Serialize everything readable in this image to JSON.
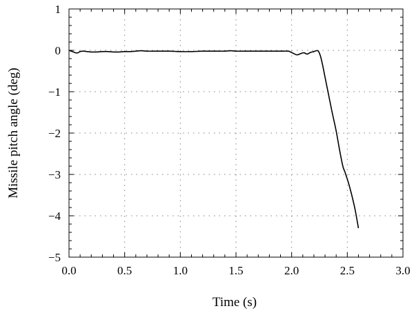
{
  "chart_data": {
    "type": "line",
    "title": "",
    "xlabel": "Time (s)",
    "ylabel": "Missile pitch angle (deg)",
    "xlim": [
      0,
      3
    ],
    "ylim": [
      -5,
      1
    ],
    "grid": true,
    "x_ticks": [
      0.0,
      0.5,
      1.0,
      1.5,
      2.0,
      2.5,
      3.0
    ],
    "y_ticks": [
      1,
      0,
      -1,
      -2,
      -3,
      -4,
      -5
    ],
    "x_tick_labels": [
      "0.0",
      "0.5",
      "1.0",
      "1.5",
      "2.0",
      "2.5",
      "3.0"
    ],
    "y_tick_labels": [
      "1",
      "0",
      "−1",
      "−2",
      "−3",
      "−4",
      "−5"
    ],
    "series": [
      {
        "name": "",
        "color": "#000000",
        "x": [
          0.0,
          0.02,
          0.04,
          0.06,
          0.08,
          0.1,
          0.13,
          0.16,
          0.2,
          0.25,
          0.3,
          0.35,
          0.4,
          0.45,
          0.5,
          0.55,
          0.6,
          0.65,
          0.7,
          0.8,
          0.9,
          1.0,
          1.1,
          1.2,
          1.3,
          1.4,
          1.45,
          1.5,
          1.6,
          1.7,
          1.8,
          1.9,
          1.97,
          1.99,
          2.02,
          2.05,
          2.08,
          2.11,
          2.14,
          2.17,
          2.2,
          2.22,
          2.24,
          2.26,
          2.28,
          2.3,
          2.33,
          2.36,
          2.4,
          2.43,
          2.46,
          2.48,
          2.51,
          2.54,
          2.57,
          2.6
        ],
        "y": [
          0.0,
          -0.02,
          -0.04,
          -0.06,
          -0.06,
          -0.03,
          -0.02,
          -0.03,
          -0.04,
          -0.04,
          -0.03,
          -0.03,
          -0.04,
          -0.04,
          -0.03,
          -0.03,
          -0.02,
          -0.01,
          -0.02,
          -0.02,
          -0.02,
          -0.03,
          -0.03,
          -0.02,
          -0.02,
          -0.02,
          -0.01,
          -0.02,
          -0.02,
          -0.02,
          -0.02,
          -0.02,
          -0.02,
          -0.04,
          -0.08,
          -0.11,
          -0.08,
          -0.06,
          -0.09,
          -0.05,
          -0.03,
          -0.01,
          -0.02,
          -0.15,
          -0.38,
          -0.65,
          -1.05,
          -1.45,
          -1.95,
          -2.4,
          -2.8,
          -2.95,
          -3.2,
          -3.5,
          -3.85,
          -4.3
        ]
      }
    ]
  }
}
